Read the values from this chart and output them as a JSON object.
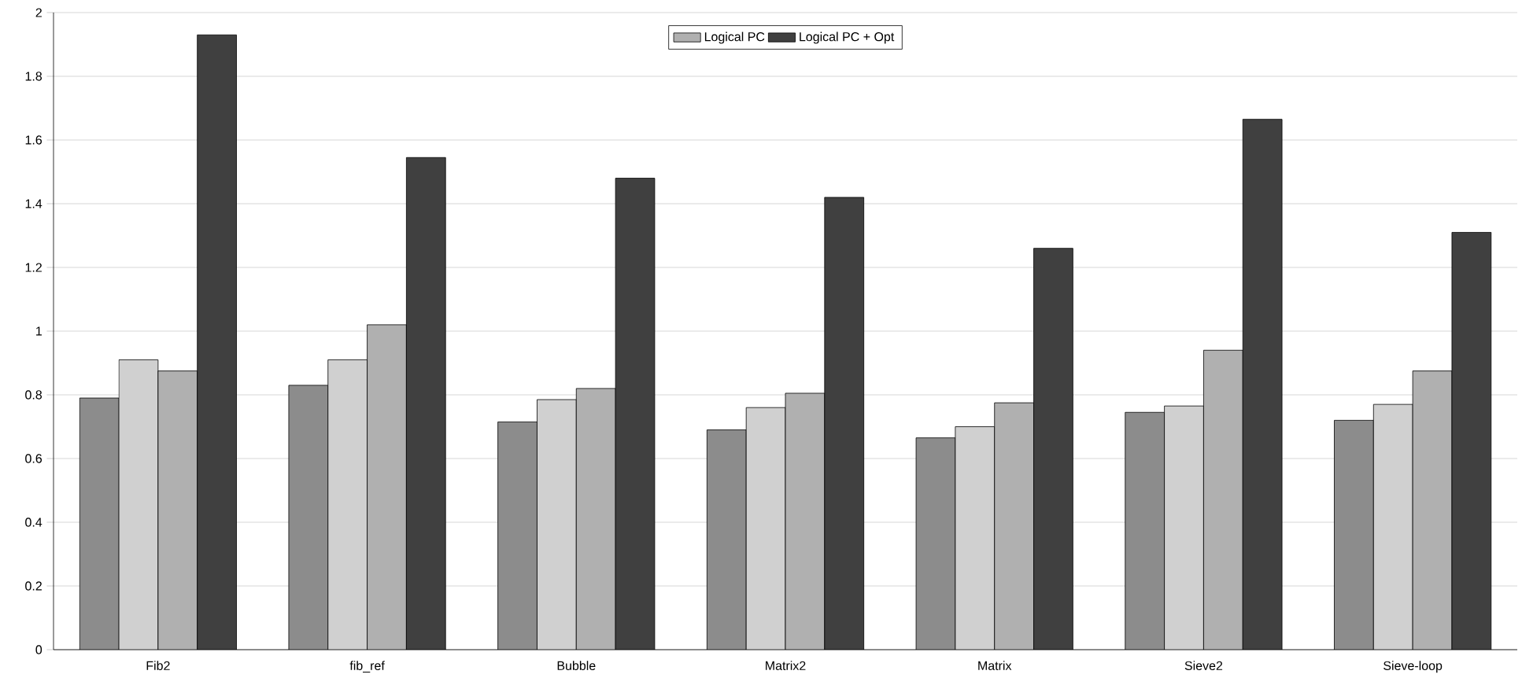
{
  "chart_data": {
    "type": "bar",
    "categories": [
      "Fib2",
      "fib_ref",
      "Bubble",
      "Matrix2",
      "Matrix",
      "Sieve2",
      "Sieve-loop"
    ],
    "series": [
      {
        "color": "#8c8c8c",
        "values": [
          0.79,
          0.83,
          0.715,
          0.69,
          0.665,
          0.745,
          0.72
        ]
      },
      {
        "color": "#d0d0d0",
        "values": [
          0.91,
          0.91,
          0.785,
          0.76,
          0.7,
          0.765,
          0.77
        ]
      },
      {
        "name": "Logical PC",
        "color": "#b0b0b0",
        "values": [
          0.875,
          1.02,
          0.82,
          0.805,
          0.775,
          0.94,
          0.875
        ]
      },
      {
        "name": "Logical PC + Opt",
        "color": "#404040",
        "values": [
          1.93,
          1.545,
          1.48,
          1.42,
          1.26,
          1.665,
          1.31
        ]
      }
    ],
    "ylim": [
      0,
      2
    ],
    "yticks": [
      0,
      0.2,
      0.4,
      0.6,
      0.8,
      1,
      1.2,
      1.4,
      1.6,
      1.8,
      2
    ],
    "grid": "y",
    "legend": "top"
  }
}
